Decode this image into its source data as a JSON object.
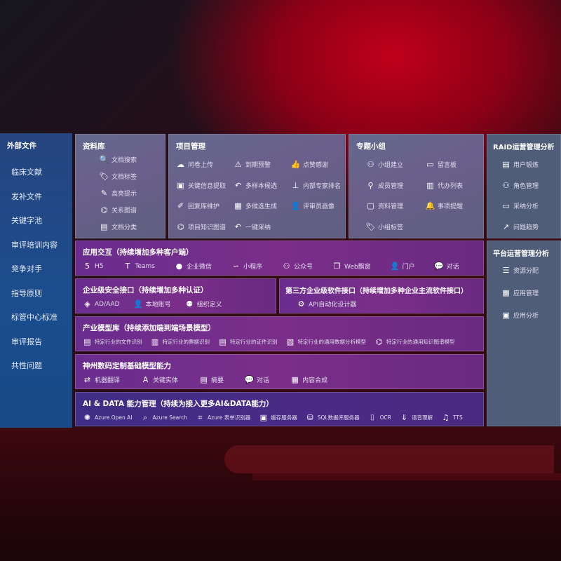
{
  "sidebar": {
    "title": "外部文件",
    "items": [
      "临床文献",
      "发补文件",
      "关键字池",
      "审评培训内容",
      "竞争对手",
      "指导原则",
      "标管中心标准",
      "审评报告",
      "共性问题"
    ]
  },
  "library": {
    "title": "资料库",
    "items": [
      {
        "icon": "file-search-icon",
        "label": "文档搜索"
      },
      {
        "icon": "tag-icon",
        "label": "文档标签"
      },
      {
        "icon": "pen-icon",
        "label": "高亮提示"
      },
      {
        "icon": "graph-icon",
        "label": "关系图谱"
      },
      {
        "icon": "document-icon",
        "label": "文档分类"
      }
    ]
  },
  "project": {
    "title": "项目管理",
    "items": [
      {
        "icon": "cloud-upload-icon",
        "label": "问卷上传"
      },
      {
        "icon": "alarm-icon",
        "label": "到期预警"
      },
      {
        "icon": "thumbs-up-icon",
        "label": "点赞感谢"
      },
      {
        "icon": "form-icon",
        "label": "关键信息提取"
      },
      {
        "icon": "reply-icon",
        "label": "多样本候选"
      },
      {
        "icon": "ranking-icon",
        "label": "内部专家排名"
      },
      {
        "icon": "edit-icon",
        "label": "回复库维护"
      },
      {
        "icon": "puzzle-icon",
        "label": "多候选生成"
      },
      {
        "icon": "user-icon",
        "label": "评审员画像"
      },
      {
        "icon": "graph-icon",
        "label": "项目知识图谱"
      },
      {
        "icon": "reply-icon",
        "label": "一键采纳"
      }
    ]
  },
  "group": {
    "title": "专题小组",
    "items": [
      {
        "icon": "users-icon",
        "label": "小组建立"
      },
      {
        "icon": "bbs-icon",
        "label": "留言板"
      },
      {
        "icon": "user-add-icon",
        "label": "成员管理"
      },
      {
        "icon": "clipboard-icon",
        "label": "代办列表"
      },
      {
        "icon": "folder-icon",
        "label": "资料管理"
      },
      {
        "icon": "bell-icon",
        "label": "事项提醒"
      },
      {
        "icon": "tag-icon",
        "label": "小组标签"
      }
    ]
  },
  "raid": {
    "title": "RAID运营管理分析",
    "items": [
      {
        "icon": "id-card-icon",
        "label": "用户锻炼"
      },
      {
        "icon": "users-icon",
        "label": "角色管理"
      },
      {
        "icon": "qa-icon",
        "label": "采纳分析"
      },
      {
        "icon": "trend-icon",
        "label": "问题趋势"
      }
    ]
  },
  "platform": {
    "title": "平台运营管理分析",
    "items": [
      {
        "icon": "checklist-icon",
        "label": "资源分配"
      },
      {
        "icon": "apps-icon",
        "label": "应用管理"
      },
      {
        "icon": "chart-icon",
        "label": "应用分析"
      }
    ]
  },
  "interaction": {
    "title": "应用交互（持续增加多种客户端）",
    "items": [
      {
        "icon": "html5-icon",
        "label": "H5"
      },
      {
        "icon": "teams-icon",
        "label": "Teams"
      },
      {
        "icon": "wechat-work-icon",
        "label": "企业微信"
      },
      {
        "icon": "mini-program-icon",
        "label": "小程序"
      },
      {
        "icon": "official-account-icon",
        "label": "公众号"
      },
      {
        "icon": "window-icon",
        "label": "Web飘窗"
      },
      {
        "icon": "portal-icon",
        "label": "门户"
      },
      {
        "icon": "chat-icon",
        "label": "对话"
      }
    ]
  },
  "security": {
    "title": "企业级安全接口（持续增加多种认证）",
    "items": [
      {
        "icon": "ad-icon",
        "label": "AD/AAD"
      },
      {
        "icon": "local-account-icon",
        "label": "本地账号"
      },
      {
        "icon": "organization-icon",
        "label": "组织定义"
      }
    ]
  },
  "thirdparty": {
    "title": "第三方企业级软件接口（持续增加多种企业主流软件接口）",
    "items": [
      {
        "icon": "gear-icon",
        "label": "API自动化设计器"
      }
    ]
  },
  "industry": {
    "title": "产业模型库（持续添加端到端场景模型）",
    "items": [
      {
        "icon": "file-icon",
        "label": "特定行业的文件识别"
      },
      {
        "icon": "receipt-icon",
        "label": "特定行业的票据识别"
      },
      {
        "icon": "id-card-icon",
        "label": "特定行业的证件识别"
      },
      {
        "icon": "image-icon",
        "label": "特定行业的通用数据分析模型"
      },
      {
        "icon": "graph-icon",
        "label": "特定行业的通用知识图谱模型"
      }
    ]
  },
  "base": {
    "title": "神州数码定制基础模型能力",
    "items": [
      {
        "icon": "translate-icon",
        "label": "机器翻译"
      },
      {
        "icon": "entity-icon",
        "label": "关键实体"
      },
      {
        "icon": "summary-icon",
        "label": "摘要"
      },
      {
        "icon": "chat-icon",
        "label": "对话"
      },
      {
        "icon": "puzzle-icon",
        "label": "内容合成"
      }
    ]
  },
  "aidata": {
    "title": "AI & DATA 能力管理（持续为接入更多AI&DATA能力）",
    "items": [
      {
        "icon": "openai-icon",
        "label": "Azure Open AI"
      },
      {
        "icon": "search-doc-icon",
        "label": "Azure Search"
      },
      {
        "icon": "form-recognizer-icon",
        "label": "Azure 表单识别器"
      },
      {
        "icon": "cache-icon",
        "label": "缓存服务器"
      },
      {
        "icon": "database-icon",
        "label": "SQL数据库服务器"
      },
      {
        "icon": "ocr-icon",
        "label": "OCR"
      },
      {
        "icon": "speech-icon",
        "label": "语音理解"
      },
      {
        "icon": "tts-icon",
        "label": "TTS"
      }
    ]
  }
}
